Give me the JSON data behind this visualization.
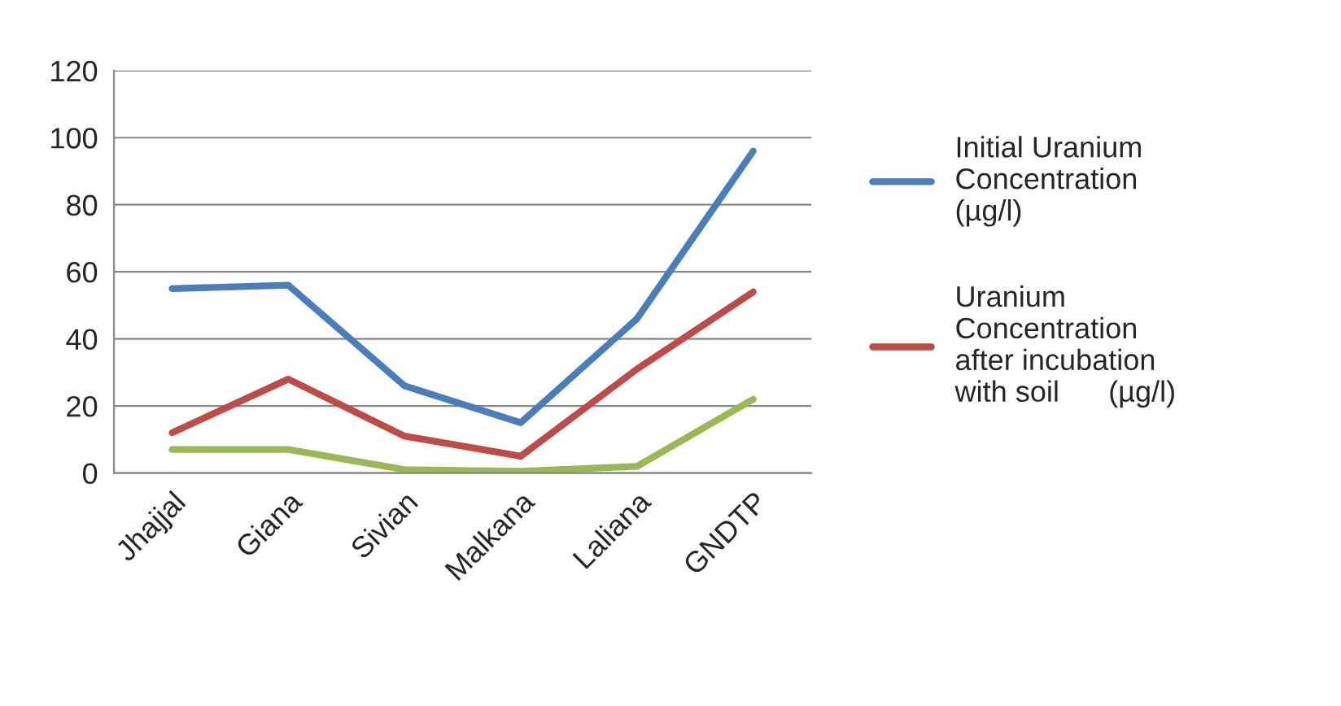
{
  "chart_data": {
    "type": "line",
    "categories": [
      "Jhajjal",
      "Giana",
      "Sivian",
      "Malkana",
      "Laliana",
      "GNDTP"
    ],
    "series": [
      {
        "name": "Initial Uranium\nConcentration\n(µg/l)",
        "color": "#4a7ebb",
        "values": [
          55,
          56,
          26,
          15,
          46,
          96
        ]
      },
      {
        "name": "Uranium\nConcentration\nafter incubation\nwith soil      (µg/l)",
        "color": "#be4b48",
        "values": [
          12,
          28,
          11,
          5,
          31,
          54
        ]
      },
      {
        "color": "#98b954",
        "values": [
          7,
          7,
          1,
          0.5,
          2,
          22
        ]
      }
    ],
    "ylim": [
      0,
      120
    ],
    "yticks": [
      0,
      20,
      40,
      60,
      80,
      100,
      120
    ],
    "grid": "y",
    "legend": "right",
    "marker": "none",
    "line_style": "solid"
  }
}
